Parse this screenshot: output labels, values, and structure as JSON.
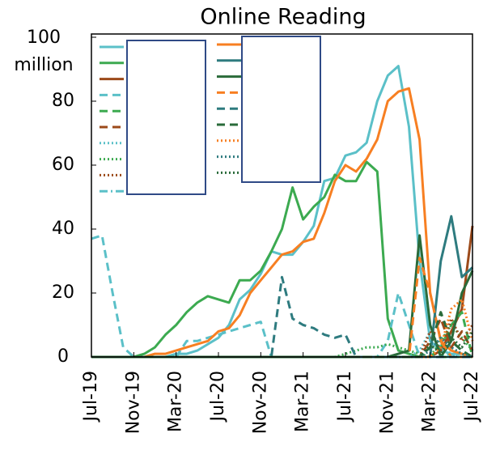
{
  "chart_data": {
    "type": "line",
    "title": "Online Reading",
    "categories": [
      "Jul-19",
      null,
      null,
      null,
      "Nov-19",
      null,
      null,
      null,
      "Mar-20",
      null,
      null,
      null,
      "Jul-20",
      null,
      null,
      null,
      "Nov-20",
      null,
      null,
      null,
      "Mar-21",
      null,
      null,
      null,
      "Jul-21",
      null,
      null,
      null,
      "Nov-21",
      null,
      null,
      null,
      "Mar-22",
      null,
      null,
      null,
      "Jul-22"
    ],
    "ylim": [
      0,
      100
    ],
    "yticks": [
      0,
      20,
      40,
      60,
      80,
      {
        "value": 100,
        "label": "100 million"
      }
    ],
    "series": [
      {
        "color": "#5bc0c8",
        "dash": "solid",
        "values": [
          0,
          0,
          0,
          0,
          0,
          0,
          0,
          0,
          1,
          1,
          2,
          4,
          6,
          10,
          18,
          21,
          26,
          33,
          32,
          32,
          36,
          41,
          55,
          56,
          63,
          64,
          67,
          80,
          88,
          91,
          72,
          30,
          5,
          2,
          1,
          1,
          0
        ]
      },
      {
        "color": "#3caa50",
        "dash": "solid",
        "values": [
          0,
          0,
          0,
          0,
          0,
          1,
          3,
          7,
          10,
          14,
          17,
          19,
          18,
          17,
          24,
          24,
          27,
          33,
          40,
          53,
          43,
          47,
          50,
          57,
          55,
          55,
          61,
          58,
          12,
          2,
          1,
          0,
          0,
          0,
          0,
          0,
          0
        ]
      },
      {
        "color": "#9c4a1a",
        "dash": "solid",
        "values": [
          0,
          0,
          0,
          0,
          0,
          0,
          0,
          0,
          0,
          0,
          0,
          0,
          0,
          0,
          0,
          0,
          0,
          0,
          0,
          0,
          0,
          0,
          0,
          0,
          0,
          0,
          0,
          0,
          0,
          0,
          0,
          0,
          0,
          2,
          8,
          15,
          41
        ]
      },
      {
        "color": "#5bc0c8",
        "dash": "dashed",
        "values": [
          37,
          38,
          20,
          3,
          0,
          0,
          0,
          0,
          0,
          5,
          5,
          6,
          7,
          8,
          9,
          10,
          11,
          0,
          0,
          0,
          0,
          0,
          0,
          0,
          0,
          0,
          0,
          0,
          5,
          20,
          10,
          0,
          0,
          0,
          0,
          0,
          0
        ]
      },
      {
        "color": "#3caa50",
        "dash": "dashed",
        "values": [
          0,
          0,
          0,
          0,
          0,
          0,
          0,
          0,
          0,
          0,
          0,
          0,
          0,
          0,
          0,
          0,
          0,
          0,
          0,
          0,
          0,
          0,
          0,
          0,
          0,
          0,
          0,
          0,
          0,
          0,
          0,
          0,
          0,
          3,
          10,
          14,
          0
        ]
      },
      {
        "color": "#9c4a1a",
        "dash": "dashed",
        "values": [
          0,
          0,
          0,
          0,
          0,
          0,
          0,
          0,
          0,
          0,
          0,
          0,
          0,
          0,
          0,
          0,
          0,
          0,
          0,
          0,
          0,
          0,
          0,
          0,
          0,
          0,
          0,
          0,
          0,
          0,
          0,
          0,
          5,
          12,
          3,
          8,
          2
        ]
      },
      {
        "color": "#5bc0c8",
        "dash": "dotted",
        "values": [
          0,
          0,
          0,
          0,
          0,
          0,
          0,
          0,
          0,
          0,
          0,
          0,
          0,
          0,
          0,
          0,
          0,
          0,
          0,
          0,
          0,
          0,
          0,
          0,
          0,
          0,
          0,
          0,
          0,
          0,
          0,
          2,
          8,
          3,
          1,
          0,
          0
        ]
      },
      {
        "color": "#3caa50",
        "dash": "dotted",
        "values": [
          0,
          0,
          0,
          0,
          0,
          0,
          0,
          0,
          0,
          0,
          0,
          0,
          0,
          0,
          0,
          0,
          0,
          0,
          0,
          0,
          0,
          0,
          0,
          0,
          1,
          2,
          3,
          3,
          4,
          3,
          2,
          1,
          0,
          5,
          10,
          6,
          2
        ]
      },
      {
        "color": "#9c4a1a",
        "dash": "dotted",
        "values": [
          0,
          0,
          0,
          0,
          0,
          0,
          0,
          0,
          0,
          0,
          0,
          0,
          0,
          0,
          0,
          0,
          0,
          0,
          0,
          0,
          0,
          0,
          0,
          0,
          0,
          0,
          0,
          0,
          0,
          0,
          0,
          0,
          8,
          2,
          12,
          5,
          10
        ]
      },
      {
        "color": "#5bc0c8",
        "dash": "dashdot",
        "values": [
          0,
          0,
          0,
          0,
          0,
          0,
          0,
          0,
          0,
          0,
          0,
          0,
          0,
          0,
          0,
          0,
          0,
          0,
          0,
          0,
          0,
          0,
          0,
          0,
          0,
          0,
          0,
          0,
          0,
          0,
          0,
          0,
          0,
          0,
          1,
          0,
          0
        ]
      },
      {
        "color": "#f77f22",
        "dash": "solid",
        "values": [
          0,
          0,
          0,
          0,
          0,
          0,
          1,
          1,
          2,
          3,
          4,
          5,
          8,
          9,
          13,
          20,
          24,
          28,
          32,
          33,
          36,
          37,
          45,
          55,
          60,
          58,
          62,
          68,
          80,
          83,
          84,
          68,
          20,
          5,
          2,
          1,
          0
        ]
      },
      {
        "color": "#2e7b7f",
        "dash": "solid",
        "values": [
          0,
          0,
          0,
          0,
          0,
          0,
          0,
          0,
          0,
          0,
          0,
          0,
          0,
          0,
          0,
          0,
          0,
          0,
          0,
          0,
          0,
          0,
          0,
          0,
          0,
          0,
          0,
          0,
          0,
          0,
          0,
          0,
          0,
          30,
          44,
          25,
          28
        ]
      },
      {
        "color": "#2a6b3a",
        "dash": "solid",
        "values": [
          0,
          0,
          0,
          0,
          0,
          0,
          0,
          0,
          0,
          0,
          0,
          0,
          0,
          0,
          0,
          0,
          0,
          0,
          0,
          0,
          0,
          0,
          0,
          0,
          0,
          0,
          0,
          0,
          0,
          1,
          2,
          38,
          10,
          0,
          5,
          20,
          27
        ]
      },
      {
        "color": "#f77f22",
        "dash": "dashed",
        "values": [
          0,
          0,
          0,
          0,
          0,
          0,
          0,
          0,
          0,
          0,
          0,
          0,
          0,
          0,
          0,
          0,
          0,
          0,
          0,
          0,
          0,
          0,
          0,
          0,
          0,
          0,
          0,
          0,
          0,
          0,
          0,
          31,
          20,
          5,
          0,
          0,
          0
        ]
      },
      {
        "color": "#2e7b7f",
        "dash": "dashed",
        "values": [
          0,
          0,
          0,
          0,
          0,
          0,
          0,
          0,
          0,
          0,
          0,
          0,
          0,
          0,
          0,
          0,
          0,
          0,
          25,
          12,
          10,
          9,
          7,
          6,
          7,
          0,
          0,
          0,
          0,
          0,
          0,
          0,
          0,
          0,
          0,
          0,
          0
        ]
      },
      {
        "color": "#2a6b3a",
        "dash": "dashed",
        "values": [
          0,
          0,
          0,
          0,
          0,
          0,
          0,
          0,
          0,
          0,
          0,
          0,
          0,
          0,
          0,
          0,
          0,
          0,
          0,
          0,
          0,
          0,
          0,
          0,
          0,
          0,
          0,
          0,
          0,
          0,
          0,
          0,
          3,
          14,
          5,
          2,
          0
        ]
      },
      {
        "color": "#f77f22",
        "dash": "dotted",
        "values": [
          0,
          0,
          0,
          0,
          0,
          0,
          0,
          0,
          0,
          0,
          0,
          0,
          0,
          0,
          0,
          0,
          0,
          0,
          0,
          0,
          0,
          0,
          0,
          0,
          0,
          0,
          0,
          0,
          0,
          0,
          0,
          0,
          0,
          3,
          15,
          18,
          5
        ]
      },
      {
        "color": "#2e7b7f",
        "dash": "dotted",
        "values": [
          0,
          0,
          0,
          0,
          0,
          0,
          0,
          0,
          0,
          0,
          0,
          0,
          0,
          0,
          0,
          0,
          0,
          0,
          0,
          0,
          0,
          0,
          0,
          0,
          0,
          0,
          0,
          0,
          0,
          0,
          0,
          0,
          2,
          6,
          3,
          1,
          0
        ]
      },
      {
        "color": "#2a6b3a",
        "dash": "dotted",
        "values": [
          0,
          0,
          0,
          0,
          0,
          0,
          0,
          0,
          0,
          0,
          0,
          0,
          0,
          0,
          0,
          0,
          0,
          0,
          0,
          0,
          0,
          0,
          0,
          0,
          0,
          0,
          0,
          0,
          0,
          0,
          0,
          0,
          4,
          1,
          6,
          3,
          8
        ]
      }
    ]
  }
}
